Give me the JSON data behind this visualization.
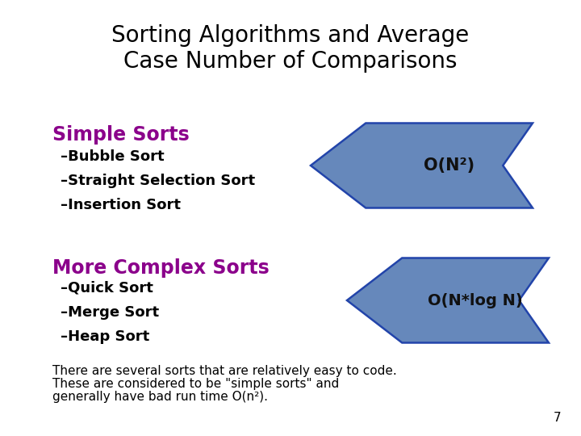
{
  "title_line1": "Sorting Algorithms and Average",
  "title_line2": "Case Number of Comparisons",
  "title_fontsize": 20,
  "title_color": "#000000",
  "section1_label": "Simple Sorts",
  "section1_color": "#8B008B",
  "section1_items": [
    "–Bubble Sort",
    "–Straight Selection Sort",
    "–Insertion Sort"
  ],
  "section2_label": "More Complex Sorts",
  "section2_color": "#8B008B",
  "section2_items": [
    "–Quick Sort",
    "–Merge Sort",
    "–Heap Sort"
  ],
  "arrow1_label": "O(N²)",
  "arrow2_label": "O(N*log N)",
  "arrow_color": "#6688BB",
  "arrow_edge_color": "#2244AA",
  "footnote_line1": "There are several sorts that are relatively easy to code.",
  "footnote_line2": "These are considered to be \"simple sorts\" and",
  "footnote_line3": "generally have bad run time O(n²).",
  "page_number": "7",
  "bg_color": "#ffffff",
  "item_color": "#000000",
  "item_fontsize": 13,
  "section_fontsize": 17,
  "footnote_fontsize": 11,
  "title_fontfamily": "DejaVu Sans"
}
